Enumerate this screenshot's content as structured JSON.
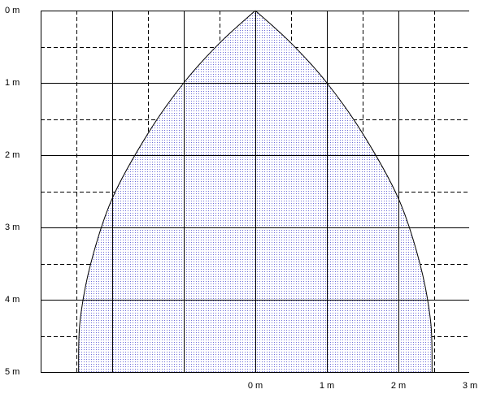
{
  "chart_data": {
    "type": "area",
    "title": "",
    "xlabel": "",
    "ylabel": "",
    "x_axis": {
      "range": [
        -3,
        3
      ],
      "tick_values": [
        0,
        1,
        2,
        3
      ],
      "tick_labels": [
        "0 m",
        "1 m",
        "2 m",
        "3 m"
      ],
      "position": "bottom"
    },
    "y_axis": {
      "range": [
        0,
        5
      ],
      "inverted": true,
      "tick_values": [
        0,
        1,
        2,
        3,
        4,
        5
      ],
      "tick_labels": [
        "0 m",
        "1 m",
        "2 m",
        "3 m",
        "4 m",
        "5 m"
      ],
      "position": "left"
    },
    "grid": {
      "major_solid": true,
      "minor_dashed": true,
      "major_step": 1,
      "minor_step": 0.5
    },
    "series": [
      {
        "fill": "dotted",
        "outline": "solid",
        "points": [
          {
            "x": 0.0,
            "y": 0.0
          },
          {
            "x": 0.5,
            "y": 0.45
          },
          {
            "x": 1.0,
            "y": 1.0
          },
          {
            "x": 1.5,
            "y": 1.7
          },
          {
            "x": 2.0,
            "y": 2.6
          },
          {
            "x": 2.3,
            "y": 3.5
          },
          {
            "x": 2.45,
            "y": 4.3
          },
          {
            "x": 2.47,
            "y": 5.0
          }
        ],
        "symmetric_about_x0": true
      }
    ],
    "colors": {
      "major_grid": "#000000",
      "minor_grid": "#000000",
      "outline": "#000000",
      "fill_dots": "#4a4ad0",
      "fill_background": "#e4e4f4"
    }
  }
}
